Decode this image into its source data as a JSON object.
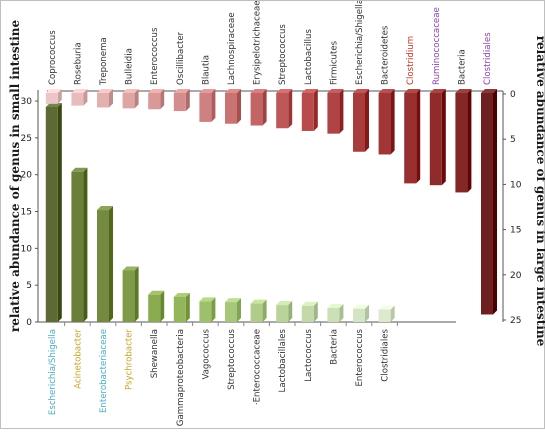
{
  "chart_data": [
    {
      "type": "bar",
      "panel": "small intestine",
      "ylabel": "relative abundance of  genus in small intestine",
      "ylim": [
        0,
        32
      ],
      "yticks": [
        0,
        5,
        10,
        15,
        20,
        25,
        30
      ],
      "categories": [
        "Escherichia/Shigella",
        "Acinetobacter",
        "Enterobacteriaceae",
        "Psychrobacter",
        "Shewanella",
        "Gammaproteobacteria",
        "Vagococcus",
        "Streptococcus",
        "·Enterococcaceae",
        "Lactobacillales",
        "Lactococcus",
        "Bacteria",
        "Enterococcus",
        "Clostridiales"
      ],
      "values": [
        29.2,
        20.4,
        15.2,
        7.0,
        3.7,
        3.4,
        2.8,
        2.7,
        2.5,
        2.3,
        2.2,
        1.9,
        1.8,
        1.7
      ],
      "label_colors": [
        "#4bacc6",
        "#c9a227",
        "#4bacc6",
        "#c9a227",
        "#333333",
        "#333333",
        "#333333",
        "#333333",
        "#333333",
        "#333333",
        "#333333",
        "#333333",
        "#333333",
        "#333333"
      ],
      "bar_colors": [
        "#5b6b33",
        "#6b7f3a",
        "#738a40",
        "#7f9a48",
        "#8aab4f",
        "#94b65b",
        "#9dc06a",
        "#a6c679",
        "#b0cc89",
        "#bad39a",
        "#c3d9aa",
        "#cce0b8",
        "#d4e5c5",
        "#dbe9cf"
      ]
    },
    {
      "type": "bar",
      "panel": "large intestine",
      "ylabel": "relative abundance of genus in large intestine",
      "ylim": [
        0,
        25
      ],
      "yticks": [
        0,
        5,
        10,
        15,
        20,
        25
      ],
      "axis_inverted": true,
      "categories": [
        "Coprococcus",
        "Roseburia",
        "Treponema",
        "Bulleidia",
        "Enterococcus",
        "Oscillibacter",
        "Blautia",
        "Lachnospiraceae",
        "Erysipelotrichaceae",
        "Streptococcus",
        "Lactobacillus",
        "Firmicutes",
        "Escherichia/Shigella",
        "Bacteroidetes",
        "Clostridium",
        "Ruminococcaceae",
        "Bacteria",
        "Clostridiales"
      ],
      "values": [
        1.2,
        1.4,
        1.6,
        1.7,
        1.8,
        2.0,
        3.2,
        3.4,
        3.6,
        3.9,
        4.2,
        4.5,
        6.5,
        6.8,
        10.0,
        10.2,
        11.0,
        24.5
      ],
      "label_colors": [
        "#333333",
        "#333333",
        "#333333",
        "#333333",
        "#333333",
        "#333333",
        "#333333",
        "#333333",
        "#333333",
        "#333333",
        "#333333",
        "#333333",
        "#333333",
        "#333333",
        "#c0392b",
        "#8e44ad",
        "#333333",
        "#8e44ad"
      ],
      "bar_colors": [
        "#ecc6c6",
        "#e8bcbc",
        "#e3b0b0",
        "#dea5a5",
        "#d99999",
        "#d48d8d",
        "#cf8080",
        "#c97373",
        "#c46565",
        "#be5858",
        "#b84c4c",
        "#b04444",
        "#a83c3c",
        "#a03636",
        "#983030",
        "#8f2b2b",
        "#862727",
        "#6e1f1f"
      ]
    }
  ]
}
